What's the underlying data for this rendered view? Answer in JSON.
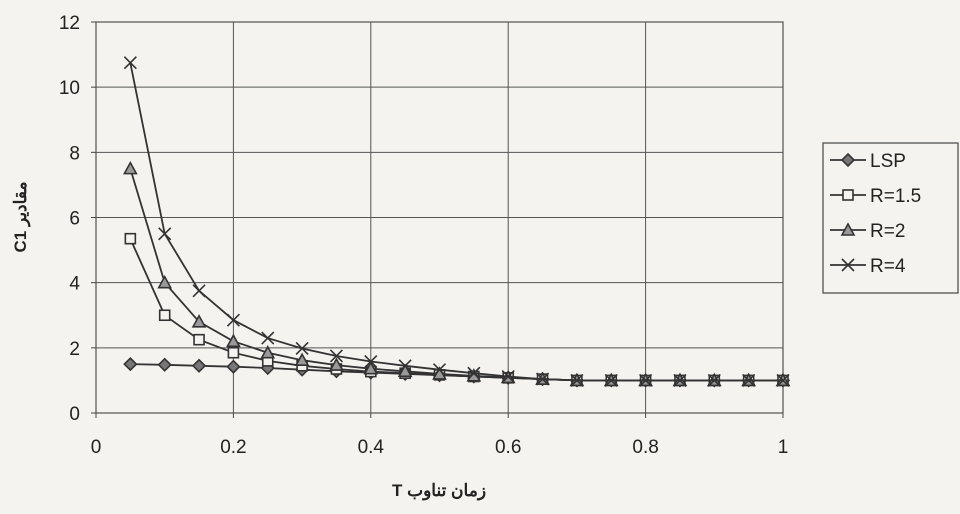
{
  "chart_data": {
    "type": "line",
    "title": "",
    "xlabel": "زمان تناوب T",
    "ylabel": "مقادیر C1",
    "xlim": [
      0,
      1
    ],
    "ylim": [
      0,
      12
    ],
    "x_ticks": [
      "0",
      "0.2",
      "0.4",
      "0.6",
      "0.8",
      "1"
    ],
    "y_ticks": [
      "0",
      "2",
      "4",
      "6",
      "8",
      "10",
      "12"
    ],
    "grid": true,
    "legend_position": "right",
    "x": [
      0.05,
      0.1,
      0.15,
      0.2,
      0.25,
      0.3,
      0.35,
      0.4,
      0.45,
      0.5,
      0.55,
      0.6,
      0.65,
      0.7,
      0.75,
      0.8,
      0.85,
      0.9,
      0.95,
      1.0
    ],
    "series": [
      {
        "name": "LSP",
        "marker": "diamond",
        "values": [
          1.5,
          1.48,
          1.45,
          1.42,
          1.38,
          1.33,
          1.28,
          1.24,
          1.2,
          1.16,
          1.12,
          1.08,
          1.04,
          1.0,
          1.0,
          1.0,
          1.0,
          1.0,
          1.0,
          1.0
        ]
      },
      {
        "name": "R=1.5",
        "marker": "square",
        "values": [
          5.35,
          3.0,
          2.25,
          1.85,
          1.6,
          1.45,
          1.35,
          1.27,
          1.22,
          1.17,
          1.12,
          1.08,
          1.04,
          1.0,
          1.0,
          1.0,
          1.0,
          1.0,
          1.0,
          1.0
        ]
      },
      {
        "name": "R=2",
        "marker": "triangle",
        "values": [
          7.5,
          4.0,
          2.8,
          2.2,
          1.85,
          1.62,
          1.47,
          1.36,
          1.28,
          1.2,
          1.14,
          1.09,
          1.04,
          1.0,
          1.0,
          1.0,
          1.0,
          1.0,
          1.0,
          1.0
        ]
      },
      {
        "name": "R=4",
        "marker": "x",
        "values": [
          10.75,
          5.5,
          3.75,
          2.85,
          2.3,
          1.98,
          1.75,
          1.58,
          1.45,
          1.33,
          1.22,
          1.12,
          1.04,
          1.0,
          1.0,
          1.0,
          1.0,
          1.0,
          1.0,
          1.0
        ]
      }
    ]
  }
}
